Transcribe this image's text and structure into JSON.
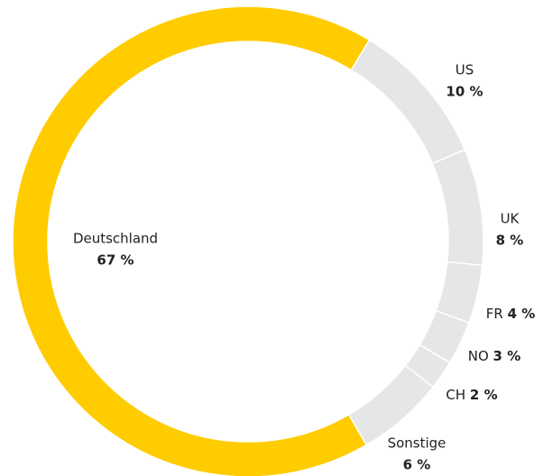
{
  "chart_data": {
    "type": "donut",
    "categories": [
      "US",
      "UK",
      "FR",
      "NO",
      "CH",
      "Sonstige",
      "Deutschland"
    ],
    "values": [
      10,
      8,
      4,
      3,
      2,
      6,
      67
    ],
    "value_labels": [
      "10 %",
      "8 %",
      "4 %",
      "3 %",
      "2 %",
      "6 %",
      "67 %"
    ],
    "colors": [
      "#e6e6e6",
      "#e6e6e6",
      "#e6e6e6",
      "#e6e6e6",
      "#e6e6e6",
      "#e6e6e6",
      "#ffcc00"
    ]
  }
}
